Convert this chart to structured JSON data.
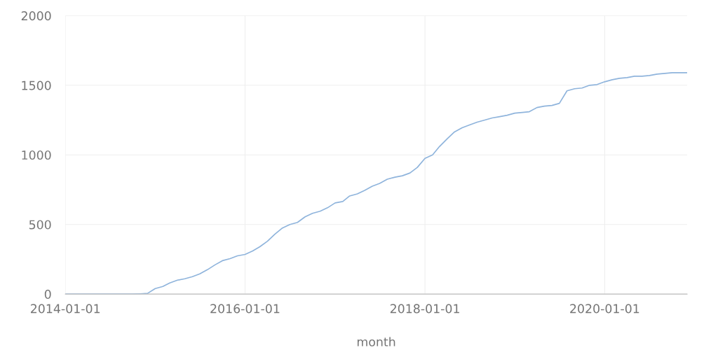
{
  "chart_data": {
    "type": "line",
    "xlabel": "month",
    "x": [
      "2014-01",
      "2014-02",
      "2014-03",
      "2014-04",
      "2014-05",
      "2014-06",
      "2014-07",
      "2014-08",
      "2014-09",
      "2014-10",
      "2014-11",
      "2014-12",
      "2015-01",
      "2015-02",
      "2015-03",
      "2015-04",
      "2015-05",
      "2015-06",
      "2015-07",
      "2015-08",
      "2015-09",
      "2015-10",
      "2015-11",
      "2015-12",
      "2016-01",
      "2016-02",
      "2016-03",
      "2016-04",
      "2016-05",
      "2016-06",
      "2016-07",
      "2016-08",
      "2016-09",
      "2016-10",
      "2016-11",
      "2016-12",
      "2017-01",
      "2017-02",
      "2017-03",
      "2017-04",
      "2017-05",
      "2017-06",
      "2017-07",
      "2017-08",
      "2017-09",
      "2017-10",
      "2017-11",
      "2017-12",
      "2018-01",
      "2018-02",
      "2018-03",
      "2018-04",
      "2018-05",
      "2018-06",
      "2018-07",
      "2018-08",
      "2018-09",
      "2018-10",
      "2018-11",
      "2018-12",
      "2019-01",
      "2019-02",
      "2019-03",
      "2019-04",
      "2019-05",
      "2019-06",
      "2019-07",
      "2019-08",
      "2019-09",
      "2019-10",
      "2019-11",
      "2019-12",
      "2020-01",
      "2020-02",
      "2020-03",
      "2020-04",
      "2020-05",
      "2020-06",
      "2020-07",
      "2020-08",
      "2020-09",
      "2020-10",
      "2020-11",
      "2020-12"
    ],
    "series": [
      {
        "color": "#8fb4dc",
        "values": [
          0,
          0,
          0,
          0,
          0,
          0,
          0,
          0,
          0,
          0,
          2,
          5,
          40,
          55,
          80,
          100,
          110,
          125,
          145,
          175,
          210,
          240,
          255,
          275,
          285,
          310,
          340,
          380,
          430,
          475,
          500,
          515,
          555,
          580,
          595,
          620,
          655,
          665,
          705,
          720,
          745,
          775,
          795,
          825,
          840,
          850,
          870,
          910,
          975,
          1000,
          1060,
          1115,
          1165,
          1195,
          1215,
          1235,
          1250,
          1265,
          1275,
          1285,
          1300,
          1305,
          1310,
          1340,
          1350,
          1355,
          1370,
          1460,
          1475,
          1480,
          1500,
          1505,
          1525,
          1540,
          1550,
          1555,
          1565,
          1565,
          1570,
          1580,
          1585,
          1590,
          1590,
          1590
        ]
      }
    ],
    "xlim": [
      "2014-01-01",
      "2020-12-01"
    ],
    "xticks": [
      "2014-01-01",
      "2016-01-01",
      "2018-01-01",
      "2020-01-01"
    ],
    "ylim": [
      0,
      2000
    ],
    "yticks": [
      0,
      500,
      1000,
      1500,
      2000
    ],
    "grid": true,
    "legend": false,
    "marker": "none",
    "line_style": "solid"
  }
}
